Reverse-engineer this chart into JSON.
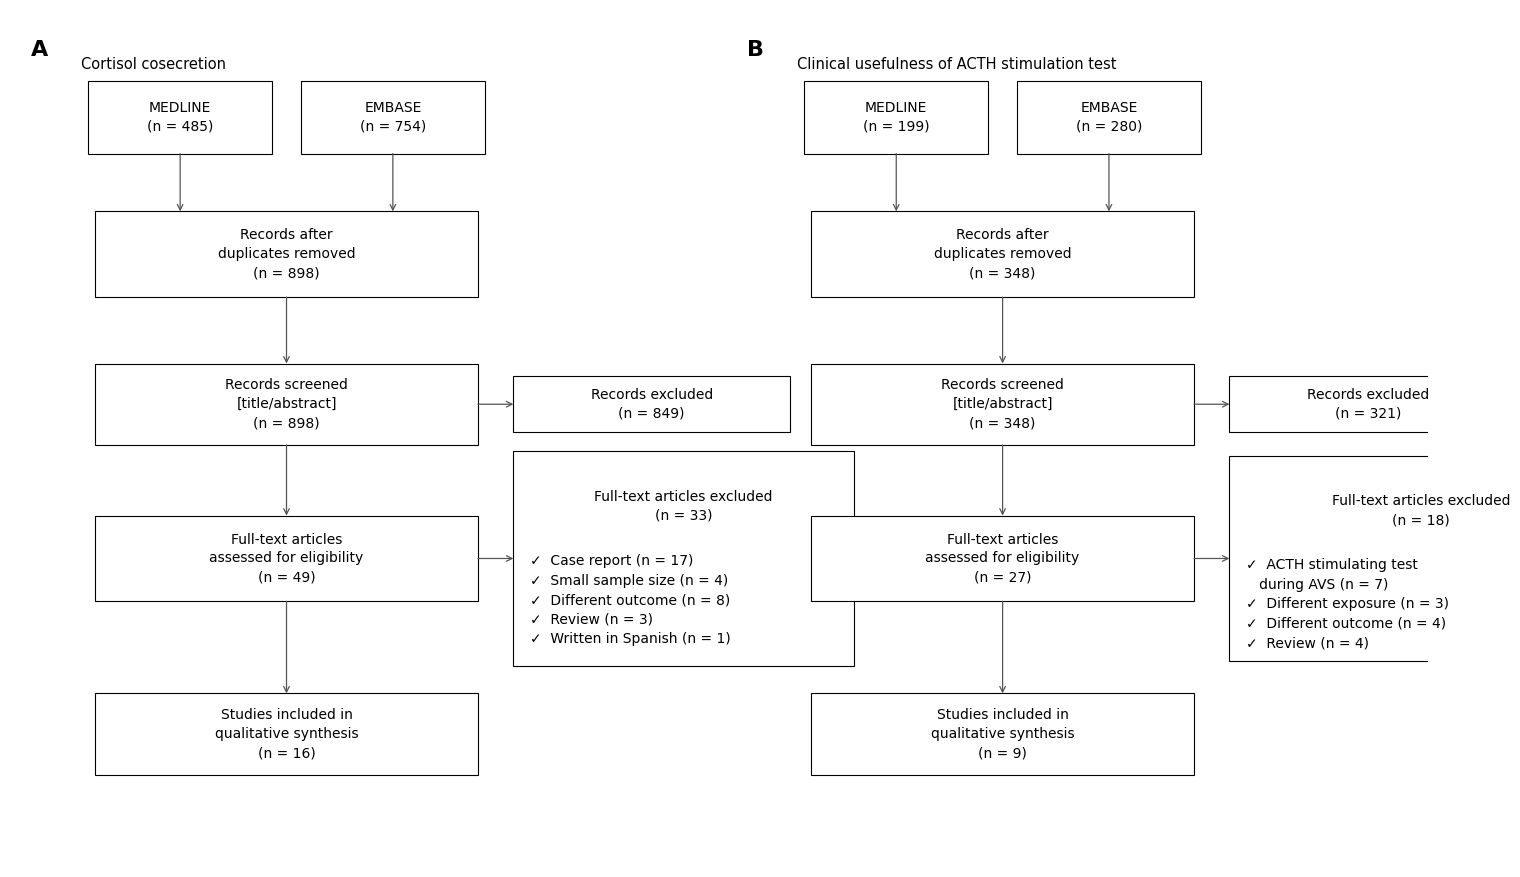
{
  "panel_A": {
    "label": "A",
    "title": "Cortisol cosecretion",
    "medline": "MEDLINE\n(n = 485)",
    "embase": "EMBASE\n(n = 754)",
    "duplicates_removed": "Records after\nduplicates removed\n(n = 898)",
    "screened": "Records screened\n[title/abstract]\n(n = 898)",
    "excluded_screened": "Records excluded\n(n = 849)",
    "fulltext": "Full-text articles\nassessed for eligibility\n(n = 49)",
    "fulltext_excluded_title": "Full-text articles excluded\n(n = 33)",
    "fulltext_excluded_items": "✓  Case report (n = 17)\n✓  Small sample size (n = 4)\n✓  Different outcome (n = 8)\n✓  Review (n = 3)\n✓  Written in Spanish (n = 1)",
    "included": "Studies included in\nqualitative synthesis\n(n = 16)"
  },
  "panel_B": {
    "label": "B",
    "title": "Clinical usefulness of ACTH stimulation test",
    "medline": "MEDLINE\n(n = 199)",
    "embase": "EMBASE\n(n = 280)",
    "duplicates_removed": "Records after\nduplicates removed\n(n = 348)",
    "screened": "Records screened\n[title/abstract]\n(n = 348)",
    "excluded_screened": "Records excluded\n(n = 321)",
    "fulltext": "Full-text articles\nassessed for eligibility\n(n = 27)",
    "fulltext_excluded_title": "Full-text articles excluded\n(n = 18)",
    "fulltext_excluded_items": "✓  ACTH stimulating test\n   during AVS (n = 7)\n✓  Different exposure (n = 3)\n✓  Different outcome (n = 4)\n✓  Review (n = 4)",
    "included": "Studies included in\nqualitative synthesis\n(n = 9)"
  },
  "box_color": "#ffffff",
  "border_color": "#000000",
  "text_color": "#000000",
  "arrow_color": "#555555",
  "bg_color": "#ffffff",
  "font_size": 10,
  "title_font_size": 10.5,
  "label_font_size": 16
}
